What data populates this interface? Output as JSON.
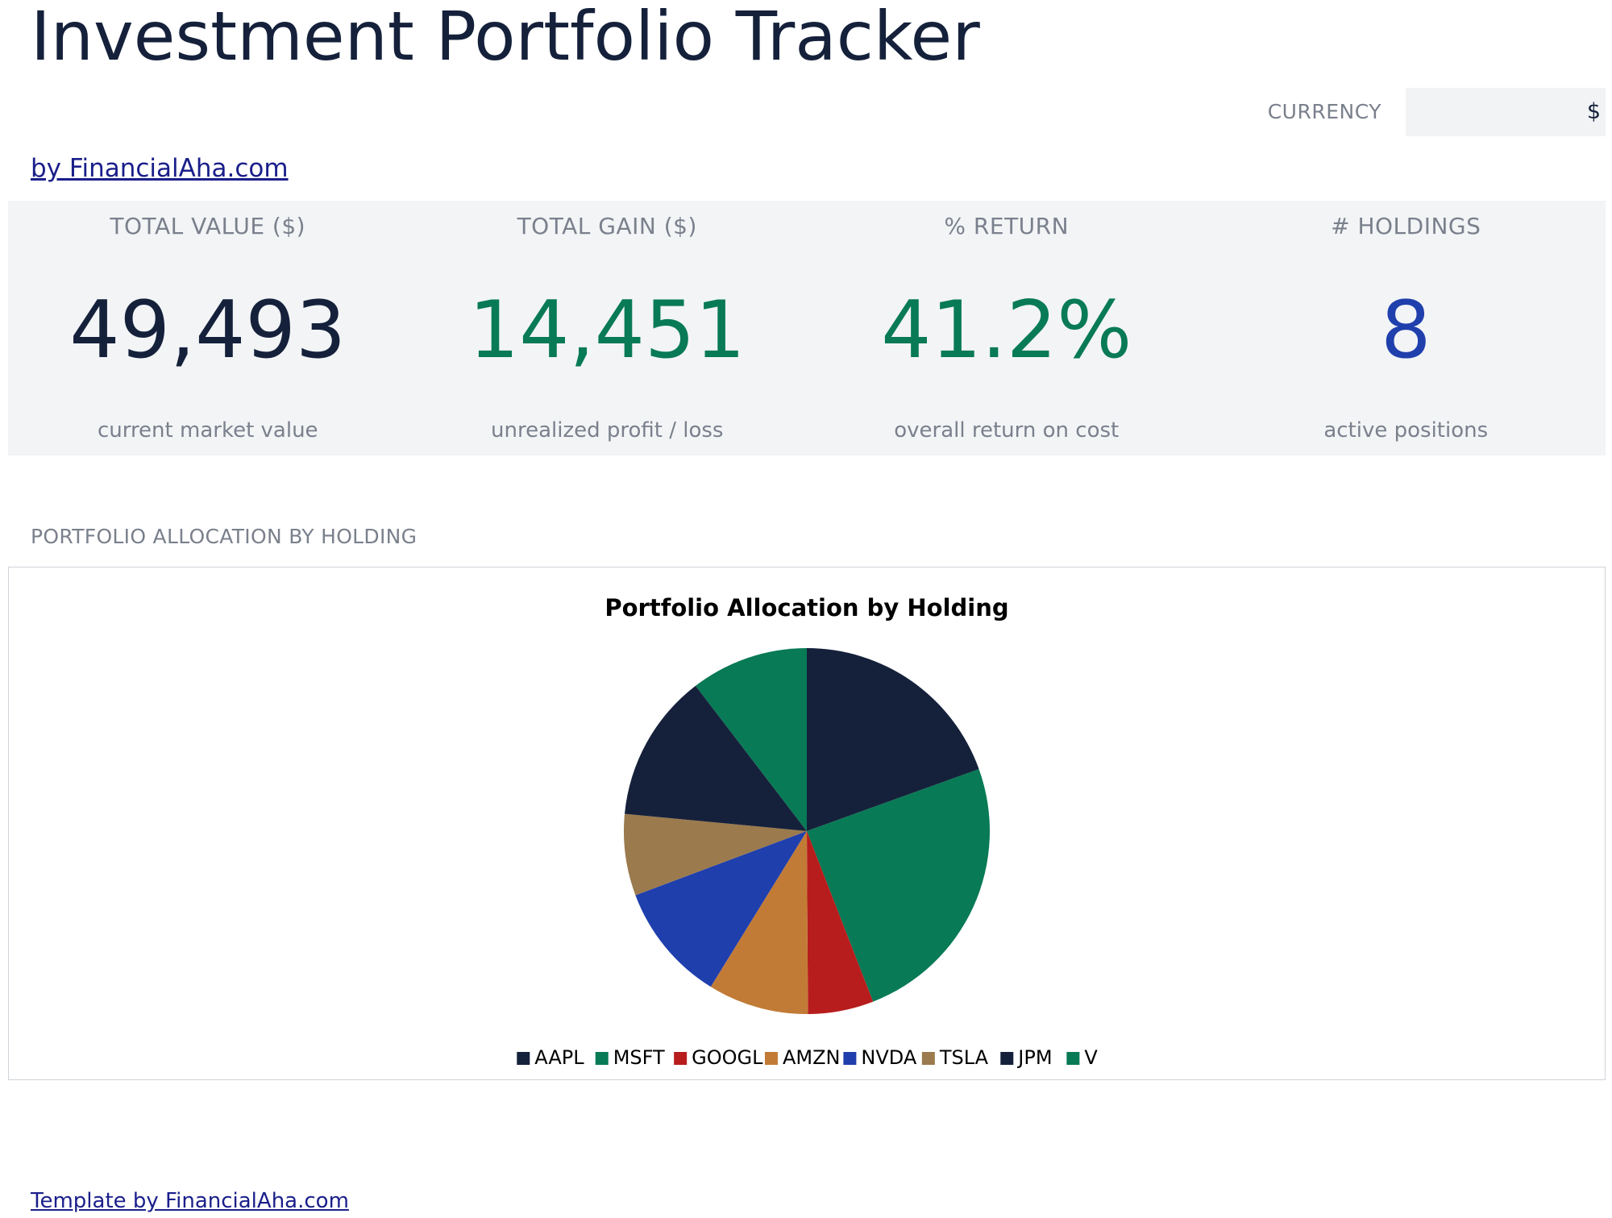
{
  "page": {
    "title": "Investment Portfolio Tracker",
    "byline": "by FinancialAha.com",
    "footer": "Template by FinancialAha.com"
  },
  "currency": {
    "label": "CURRENCY",
    "value": "$"
  },
  "kpis": [
    {
      "label": "TOTAL VALUE ($)",
      "value": "49,493",
      "sub": "current market value",
      "color": "#15213b"
    },
    {
      "label": "TOTAL GAIN ($)",
      "value": "14,451",
      "sub": "unrealized profit / loss",
      "color": "#087a55"
    },
    {
      "label": "% RETURN",
      "value": "41.2%",
      "sub": "overall return on cost",
      "color": "#087a55"
    },
    {
      "label": "# HOLDINGS",
      "value": "8",
      "sub": "active positions",
      "color": "#1f3fad"
    }
  ],
  "section": {
    "allocation_label": "PORTFOLIO ALLOCATION BY HOLDING"
  },
  "chart_data": {
    "type": "pie",
    "title": "Portfolio Allocation by Holding",
    "legend_position": "bottom",
    "categories": [
      "AAPL",
      "MSFT",
      "GOOGL",
      "AMZN",
      "NVDA",
      "TSLA",
      "JPM",
      "V"
    ],
    "values": [
      19.5,
      24.6,
      5.8,
      8.9,
      10.5,
      7.2,
      13.1,
      10.4
    ],
    "unit": "% of portfolio value",
    "colors": [
      "#15213b",
      "#087a55",
      "#b81d1d",
      "#c27b36",
      "#1f3fad",
      "#9b7a4d",
      "#15213b",
      "#087a55"
    ]
  }
}
